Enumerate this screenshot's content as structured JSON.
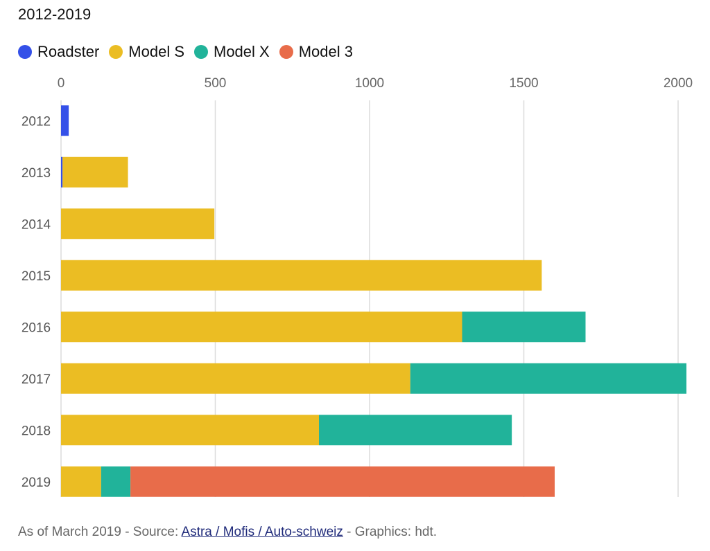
{
  "subtitle": "2012-2019",
  "footer": {
    "prefix": "As of March 2019 - Source:",
    "link_text": "Astra / Mofis / Auto-schweiz",
    "suffix": "- Graphics: hdt."
  },
  "chart_data": {
    "type": "bar",
    "orientation": "horizontal",
    "stacked": true,
    "title": "2012-2019",
    "categories": [
      "2012",
      "2013",
      "2014",
      "2015",
      "2016",
      "2017",
      "2018",
      "2019"
    ],
    "series": [
      {
        "name": "Roadster",
        "color": "#3450e8",
        "values": [
          25,
          5,
          0,
          0,
          0,
          0,
          0,
          0
        ]
      },
      {
        "name": "Model S",
        "color": "#ebbd23",
        "values": [
          0,
          212,
          497,
          1558,
          1300,
          1132,
          836,
          130
        ]
      },
      {
        "name": "Model X",
        "color": "#21b39a",
        "values": [
          0,
          0,
          0,
          0,
          400,
          895,
          625,
          95
        ]
      },
      {
        "name": "Model 3",
        "color": "#e86c4a",
        "values": [
          0,
          0,
          0,
          0,
          0,
          0,
          0,
          1375
        ]
      }
    ],
    "x_ticks": [
      0,
      500,
      1000,
      1500,
      2000
    ],
    "xlim": [
      0,
      2000
    ],
    "grid": true,
    "legend": "top-left"
  }
}
